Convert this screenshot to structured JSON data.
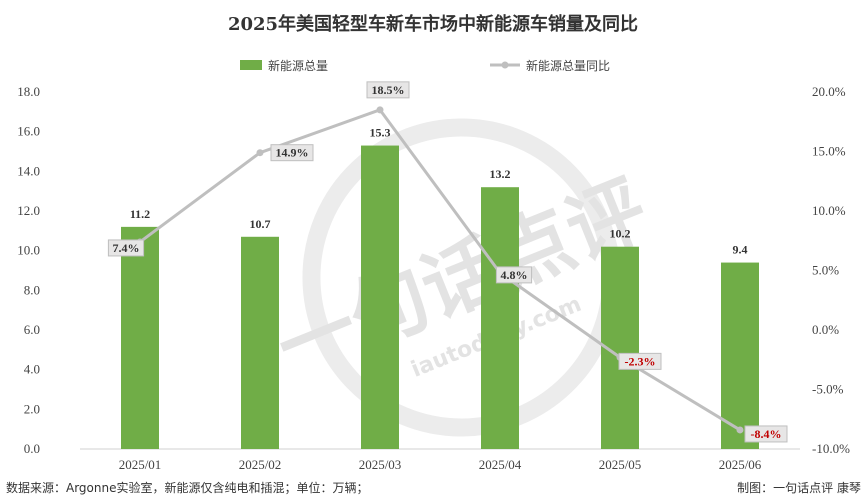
{
  "chart_data": {
    "type": "bar+line",
    "title": "2025年美国轻型车新车市场中新能源车销量及同比",
    "categories": [
      "2025/01",
      "2025/02",
      "2025/03",
      "2025/04",
      "2025/05",
      "2025/06"
    ],
    "series": [
      {
        "name": "新能源总量",
        "type": "bar",
        "axis": "left",
        "values": [
          11.2,
          10.7,
          15.3,
          13.2,
          10.2,
          9.4
        ],
        "labels": [
          "11.2",
          "10.7",
          "15.3",
          "13.2",
          "10.2",
          "9.4"
        ],
        "color": "#70ad47"
      },
      {
        "name": "新能源总量同比",
        "type": "line",
        "axis": "right",
        "values": [
          7.4,
          14.9,
          18.5,
          4.8,
          -2.3,
          -8.4
        ],
        "labels": [
          "7.4%",
          "14.9%",
          "18.5%",
          "4.8%",
          "-2.3%",
          "-8.4%"
        ],
        "color": "#bfbfbf",
        "positive_label_color": "#333333",
        "negative_label_color": "#c00000"
      }
    ],
    "y_left": {
      "range": [
        0,
        18
      ],
      "ticks": [
        "0.0",
        "2.0",
        "4.0",
        "6.0",
        "8.0",
        "10.0",
        "12.0",
        "14.0",
        "16.0",
        "18.0"
      ]
    },
    "y_right": {
      "range": [
        -10,
        20
      ],
      "ticks": [
        "-10.0%",
        "-5.0%",
        "0.0%",
        "5.0%",
        "10.0%",
        "15.0%",
        "20.0%"
      ]
    },
    "grid": false,
    "legend_position": "top-center"
  },
  "watermark": {
    "text": "一句话点评",
    "url": "iautodaily.com",
    "color": "#e3e3e3"
  },
  "footer": {
    "source": "数据来源：Argonne实验室，新能源仅含纯电和插混；单位：万辆；",
    "credit": "制图：一句话点评 康琴"
  }
}
